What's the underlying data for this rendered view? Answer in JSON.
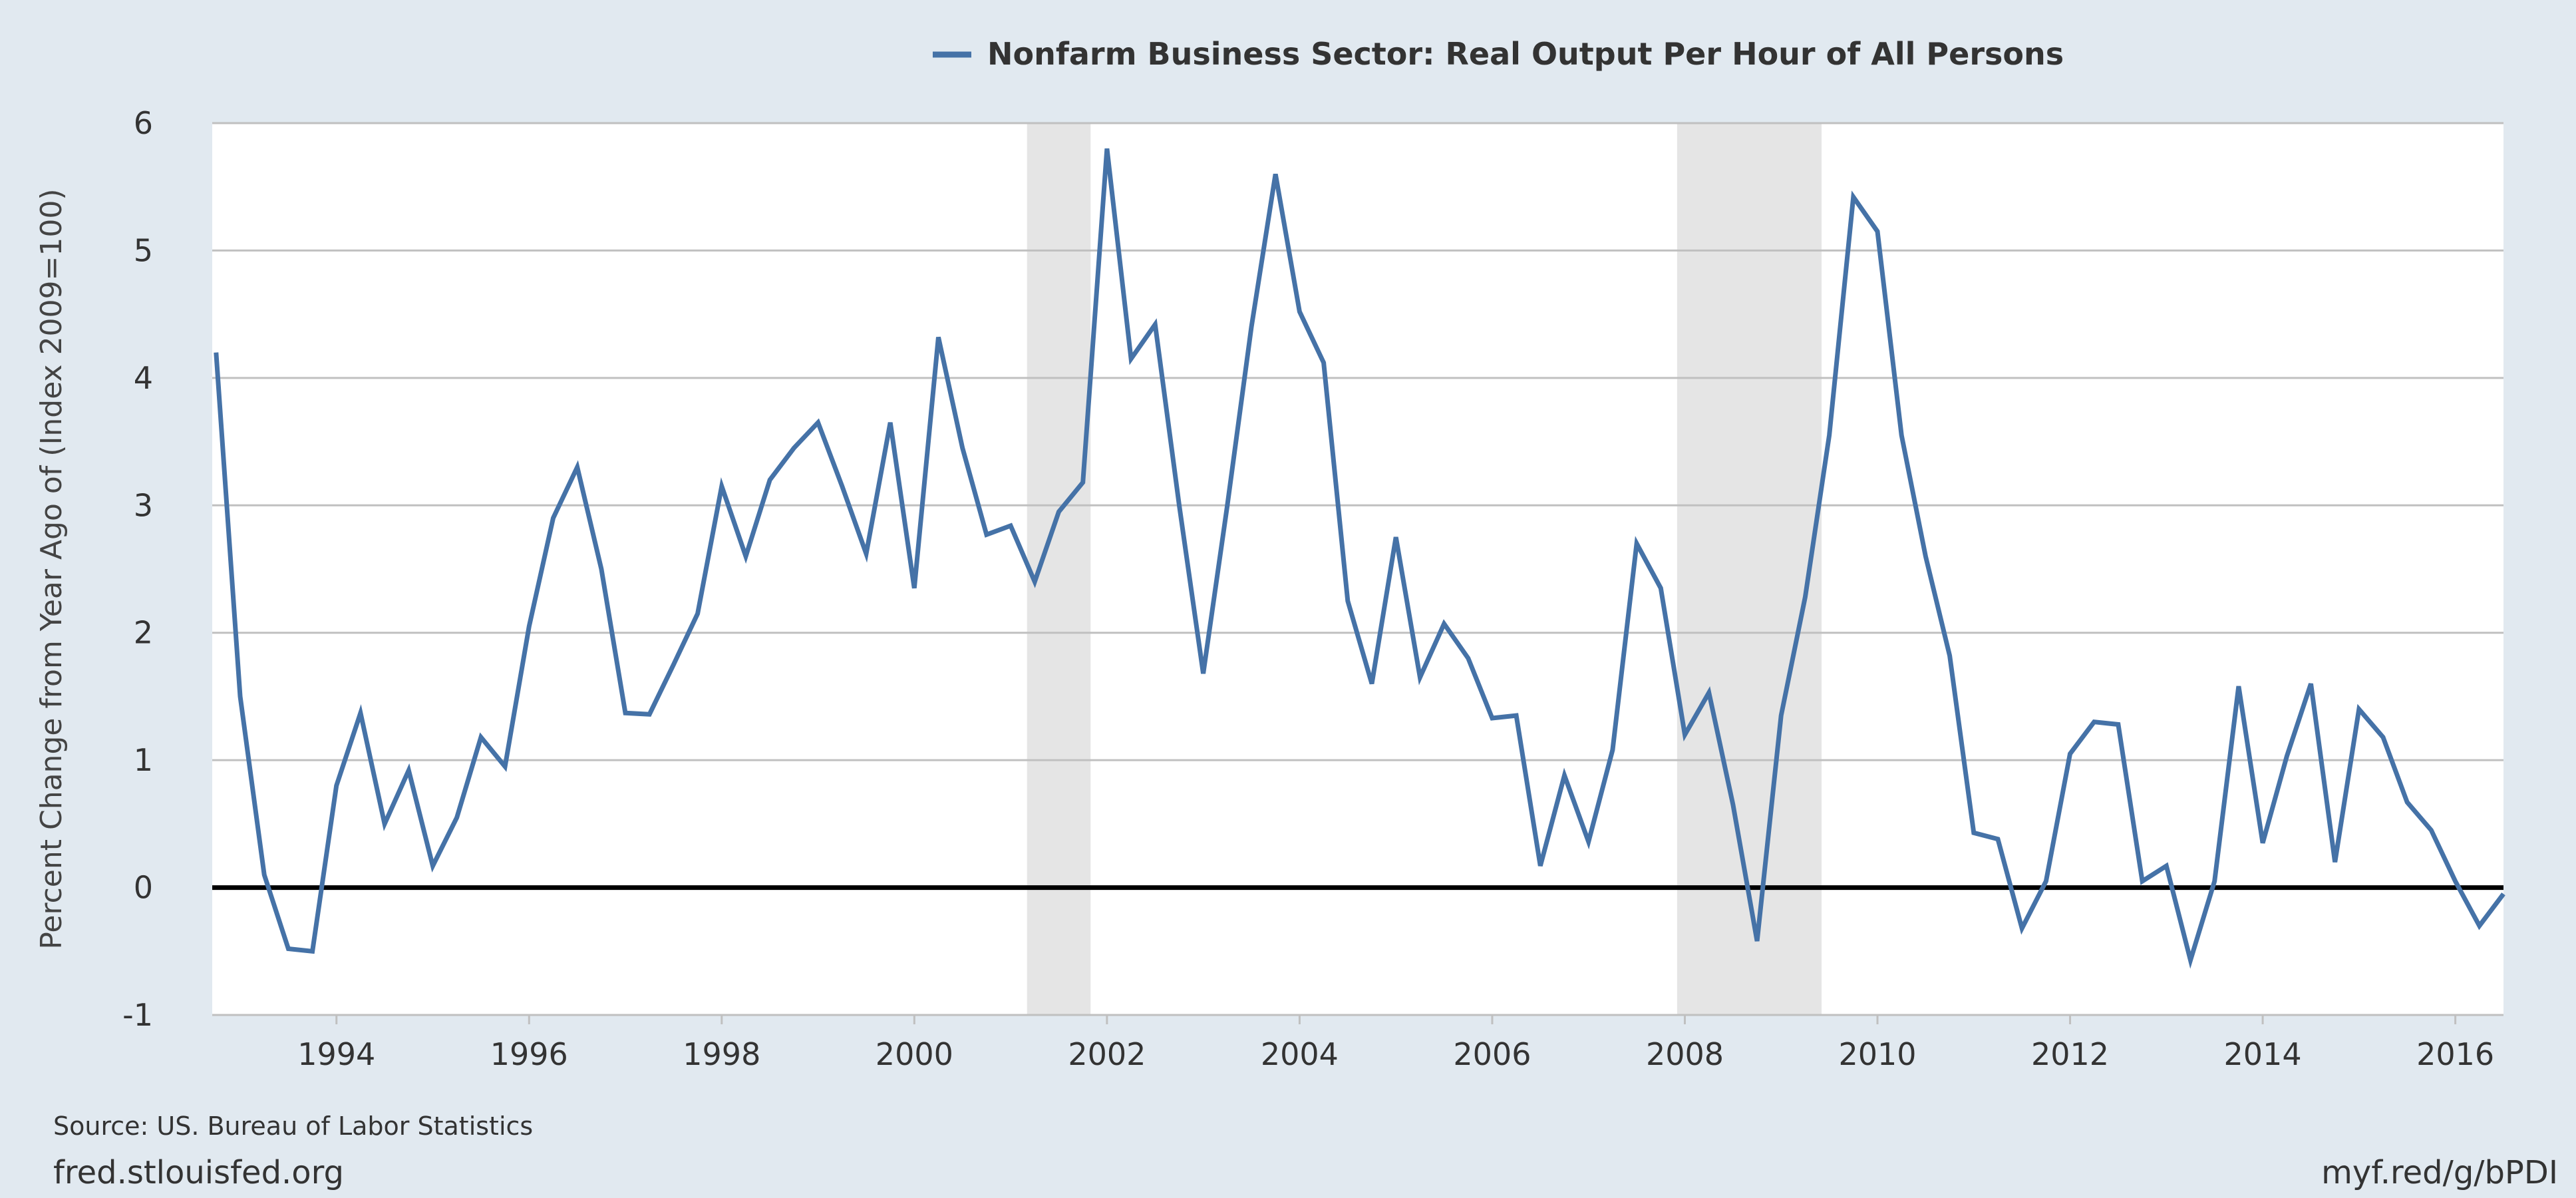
{
  "footer": {
    "source": "Source: US. Bureau of Labor Statistics",
    "site": "fred.stlouisfed.org",
    "short_url": "myf.red/g/bPDI"
  },
  "colors": {
    "background": "#e1e9f0",
    "plot_background": "#ffffff",
    "line": "#4572a7",
    "recession": "#e5e5e5",
    "grid": "#c0c0c0",
    "zero_line": "#000000",
    "text": "#333333"
  },
  "chart_data": {
    "type": "line",
    "title": "",
    "xlabel": "",
    "ylabel": "Percent Change from Year Ago of (Index 2009=100)",
    "legend_position": "top-center",
    "grid": true,
    "xlim": [
      1992.71,
      2016.5
    ],
    "ylim": [
      -1,
      6
    ],
    "x_ticks": [
      "1994",
      "1996",
      "1998",
      "2000",
      "2002",
      "2004",
      "2006",
      "2008",
      "2010",
      "2012",
      "2014",
      "2016"
    ],
    "y_ticks": [
      "-1",
      "0",
      "1",
      "2",
      "3",
      "4",
      "5",
      "6"
    ],
    "recessions": [
      [
        2001.17,
        2001.83
      ],
      [
        2007.92,
        2009.42
      ]
    ],
    "series": [
      {
        "name": "Nonfarm Business Sector: Real Output Per Hour of All Persons",
        "color": "#4572a7",
        "points": [
          [
            1992.75,
            4.2
          ],
          [
            1993.0,
            1.5
          ],
          [
            1993.25,
            0.1
          ],
          [
            1993.5,
            -0.48
          ],
          [
            1993.75,
            -0.5
          ],
          [
            1994.0,
            0.8
          ],
          [
            1994.25,
            1.37
          ],
          [
            1994.5,
            0.5
          ],
          [
            1994.75,
            0.92
          ],
          [
            1995.0,
            0.17
          ],
          [
            1995.25,
            0.55
          ],
          [
            1995.5,
            1.18
          ],
          [
            1995.75,
            0.95
          ],
          [
            1996.0,
            2.05
          ],
          [
            1996.25,
            2.9
          ],
          [
            1996.5,
            3.3
          ],
          [
            1996.75,
            2.5
          ],
          [
            1997.0,
            1.37
          ],
          [
            1997.25,
            1.36
          ],
          [
            1997.5,
            1.75
          ],
          [
            1997.75,
            2.15
          ],
          [
            1998.0,
            3.15
          ],
          [
            1998.25,
            2.6
          ],
          [
            1998.5,
            3.2
          ],
          [
            1998.75,
            3.45
          ],
          [
            1999.0,
            3.65
          ],
          [
            1999.25,
            3.15
          ],
          [
            1999.5,
            2.62
          ],
          [
            1999.75,
            3.65
          ],
          [
            2000.0,
            2.35
          ],
          [
            2000.25,
            4.32
          ],
          [
            2000.5,
            3.45
          ],
          [
            2000.75,
            2.77
          ],
          [
            2001.0,
            2.84
          ],
          [
            2001.25,
            2.4
          ],
          [
            2001.5,
            2.95
          ],
          [
            2001.75,
            3.18
          ],
          [
            2002.0,
            5.8
          ],
          [
            2002.25,
            4.15
          ],
          [
            2002.5,
            4.42
          ],
          [
            2002.75,
            3.0
          ],
          [
            2003.0,
            1.68
          ],
          [
            2003.25,
            3.0
          ],
          [
            2003.5,
            4.4
          ],
          [
            2003.75,
            5.6
          ],
          [
            2004.0,
            4.52
          ],
          [
            2004.25,
            4.12
          ],
          [
            2004.5,
            2.25
          ],
          [
            2004.75,
            1.6
          ],
          [
            2005.0,
            2.75
          ],
          [
            2005.25,
            1.65
          ],
          [
            2005.5,
            2.07
          ],
          [
            2005.75,
            1.8
          ],
          [
            2006.0,
            1.33
          ],
          [
            2006.25,
            1.35
          ],
          [
            2006.5,
            0.17
          ],
          [
            2006.75,
            0.88
          ],
          [
            2007.0,
            0.36
          ],
          [
            2007.25,
            1.08
          ],
          [
            2007.5,
            2.7
          ],
          [
            2007.75,
            2.35
          ],
          [
            2008.0,
            1.2
          ],
          [
            2008.25,
            1.53
          ],
          [
            2008.5,
            0.65
          ],
          [
            2008.75,
            -0.42
          ],
          [
            2009.0,
            1.35
          ],
          [
            2009.25,
            2.28
          ],
          [
            2009.5,
            3.55
          ],
          [
            2009.75,
            5.42
          ],
          [
            2010.0,
            5.15
          ],
          [
            2010.25,
            3.55
          ],
          [
            2010.5,
            2.6
          ],
          [
            2010.75,
            1.82
          ],
          [
            2011.0,
            0.43
          ],
          [
            2011.25,
            0.38
          ],
          [
            2011.5,
            -0.32
          ],
          [
            2011.75,
            0.05
          ],
          [
            2012.0,
            1.05
          ],
          [
            2012.25,
            1.3
          ],
          [
            2012.5,
            1.28
          ],
          [
            2012.75,
            0.05
          ],
          [
            2013.0,
            0.17
          ],
          [
            2013.25,
            -0.57
          ],
          [
            2013.5,
            0.05
          ],
          [
            2013.75,
            1.58
          ],
          [
            2014.0,
            0.35
          ],
          [
            2014.25,
            1.03
          ],
          [
            2014.5,
            1.6
          ],
          [
            2014.75,
            0.2
          ],
          [
            2015.0,
            1.4
          ],
          [
            2015.25,
            1.18
          ],
          [
            2015.5,
            0.67
          ],
          [
            2015.75,
            0.45
          ],
          [
            2016.0,
            0.05
          ],
          [
            2016.25,
            -0.3
          ],
          [
            2016.5,
            -0.05
          ]
        ]
      }
    ]
  }
}
